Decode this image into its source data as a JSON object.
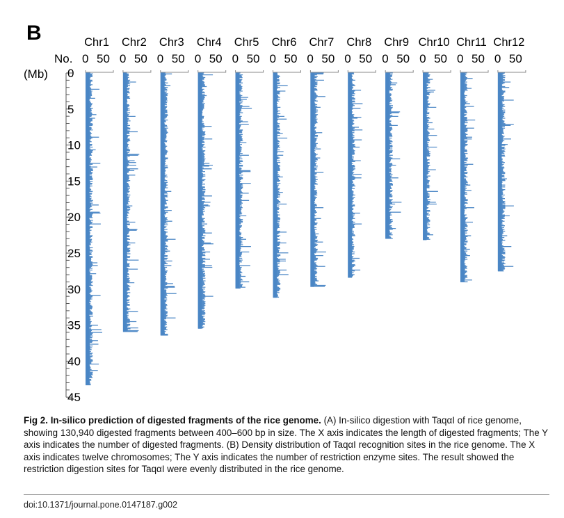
{
  "panel_label": "B",
  "chart_data": {
    "type": "bar",
    "orientation": "horizontal-density",
    "x_axis_label": "No.",
    "x_ticks": [
      0,
      50
    ],
    "y_axis_label": "(Mb)",
    "y_ticks": [
      0,
      5,
      10,
      15,
      20,
      25,
      30,
      35,
      40,
      45
    ],
    "ylim": [
      0,
      45
    ],
    "series_color": "#4a86c5",
    "categories": [
      "Chr1",
      "Chr2",
      "Chr3",
      "Chr4",
      "Chr5",
      "Chr6",
      "Chr7",
      "Chr8",
      "Chr9",
      "Chr10",
      "Chr11",
      "Chr12"
    ],
    "chromosome_lengths_mb": [
      43.3,
      35.9,
      36.4,
      35.5,
      29.9,
      31.2,
      29.7,
      28.4,
      23.0,
      23.2,
      29.0,
      27.5
    ],
    "typical_site_count": 15,
    "max_site_count": 50
  },
  "caption": {
    "fig_label": "Fig 2.",
    "title": "In-silico prediction of digested fragments of the rice genome.",
    "body": "(A) In-silico digestion with TaqαI of rice genome, showing 130,940 digested fragments between 400–600 bp in size. The X axis indicates the length of digested fragments; The Y axis indicates the number of digested fragments. (B) Density distribution of TaqαI recognition sites in the rice genome. The X axis indicates twelve chromosomes; The Y axis indicates the number of restriction enzyme sites. The result showed the restriction digestion sites for TaqαI were evenly distributed in the rice genome."
  },
  "doi": "doi:10.1371/journal.pone.0147187.g002"
}
